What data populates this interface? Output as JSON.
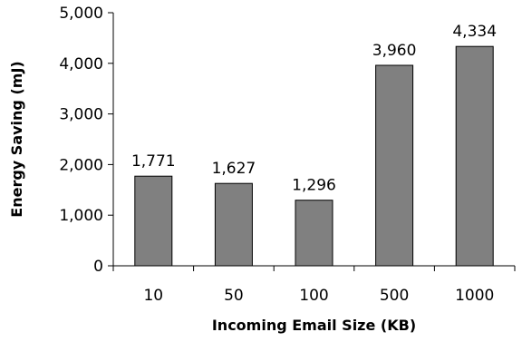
{
  "chart_data": {
    "type": "bar",
    "categories": [
      "10",
      "50",
      "100",
      "500",
      "1000"
    ],
    "values": [
      1771,
      1627,
      1296,
      3960,
      4334
    ],
    "data_labels": [
      "1,771",
      "1,627",
      "1,296",
      "3,960",
      "4,334"
    ],
    "title": "",
    "xlabel": "Incoming Email Size (KB)",
    "ylabel": "Energy Saving (mJ)",
    "ylim": [
      0,
      5000
    ],
    "yticks": [
      0,
      1000,
      2000,
      3000,
      4000,
      5000
    ],
    "ytick_labels": [
      "0",
      "1,000",
      "2,000",
      "3,000",
      "4,000",
      "5,000"
    ],
    "grid": false,
    "legend": "none",
    "colors": {
      "bar_fill": "#808080",
      "bar_stroke": "#000000",
      "axis": "#000000",
      "text": "#000000"
    }
  }
}
